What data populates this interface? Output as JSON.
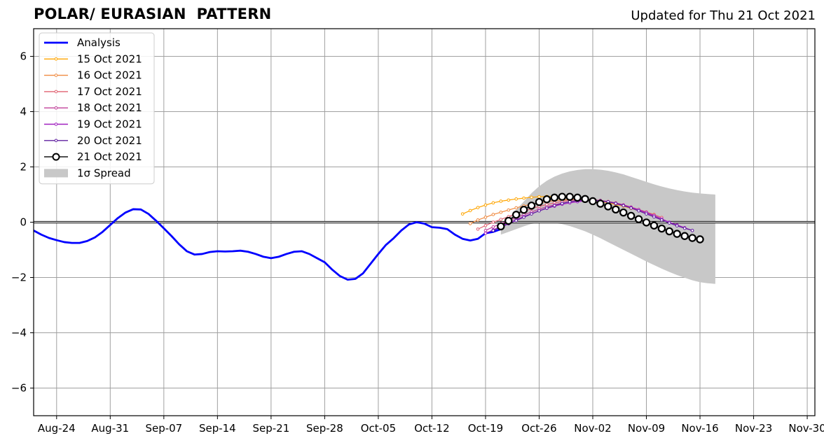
{
  "header": {
    "title": "POLAR/ EURASIAN  PATTERN",
    "updated": "Updated for Thu 21 Oct 2021"
  },
  "chart_data": {
    "type": "line",
    "title": "POLAR/ EURASIAN  PATTERN",
    "subtitle": "Updated for Thu 21 Oct 2021",
    "xlabel": "",
    "ylabel": "",
    "ylim": [
      -7,
      7
    ],
    "xlim": [
      "2021-08-21",
      "2021-12-01"
    ],
    "grid": true,
    "legend_position": "top-left",
    "y_ticks": [
      -6,
      -4,
      -2,
      0,
      2,
      4,
      6
    ],
    "y_tick_labels": [
      "−6",
      "−4",
      "−2",
      "0",
      "2",
      "4",
      "6"
    ],
    "x_ticks": [
      "2021-08-24",
      "2021-08-31",
      "2021-09-07",
      "2021-09-14",
      "2021-09-21",
      "2021-09-28",
      "2021-10-05",
      "2021-10-12",
      "2021-10-19",
      "2021-10-26",
      "2021-11-02",
      "2021-11-09",
      "2021-11-16",
      "2021-11-23",
      "2021-11-30"
    ],
    "x_tick_labels": [
      "Aug-24",
      "Aug-31",
      "Sep-07",
      "Sep-14",
      "Sep-21",
      "Sep-28",
      "Oct-05",
      "Oct-12",
      "Oct-19",
      "Oct-26",
      "Nov-02",
      "Nov-09",
      "Nov-16",
      "Nov-23",
      "Nov-30"
    ],
    "reference_line": 0,
    "analysis": {
      "name": "Analysis",
      "color": "#0000ff",
      "x": [
        "2021-08-21",
        "2021-08-22",
        "2021-08-23",
        "2021-08-24",
        "2021-08-25",
        "2021-08-26",
        "2021-08-27",
        "2021-08-28",
        "2021-08-29",
        "2021-08-30",
        "2021-08-31",
        "2021-09-01",
        "2021-09-02",
        "2021-09-03",
        "2021-09-04",
        "2021-09-05",
        "2021-09-06",
        "2021-09-07",
        "2021-09-08",
        "2021-09-09",
        "2021-09-10",
        "2021-09-11",
        "2021-09-12",
        "2021-09-13",
        "2021-09-14",
        "2021-09-15",
        "2021-09-16",
        "2021-09-17",
        "2021-09-18",
        "2021-09-19",
        "2021-09-20",
        "2021-09-21",
        "2021-09-22",
        "2021-09-23",
        "2021-09-24",
        "2021-09-25",
        "2021-09-26",
        "2021-09-27",
        "2021-09-28",
        "2021-09-29",
        "2021-09-30",
        "2021-10-01",
        "2021-10-02",
        "2021-10-03",
        "2021-10-04",
        "2021-10-05",
        "2021-10-06",
        "2021-10-07",
        "2021-10-08",
        "2021-10-09",
        "2021-10-10",
        "2021-10-11",
        "2021-10-12",
        "2021-10-13",
        "2021-10-14",
        "2021-10-15",
        "2021-10-16",
        "2021-10-17",
        "2021-10-18",
        "2021-10-19",
        "2021-10-20",
        "2021-10-21"
      ],
      "y": [
        -0.3,
        -0.45,
        -0.57,
        -0.65,
        -0.72,
        -0.75,
        -0.75,
        -0.68,
        -0.55,
        -0.35,
        -0.1,
        0.15,
        0.35,
        0.47,
        0.46,
        0.3,
        0.05,
        -0.22,
        -0.5,
        -0.8,
        -1.05,
        -1.17,
        -1.15,
        -1.08,
        -1.05,
        -1.06,
        -1.05,
        -1.03,
        -1.07,
        -1.15,
        -1.25,
        -1.3,
        -1.25,
        -1.15,
        -1.07,
        -1.05,
        -1.15,
        -1.3,
        -1.45,
        -1.72,
        -1.95,
        -2.08,
        -2.05,
        -1.85,
        -1.5,
        -1.15,
        -0.82,
        -0.58,
        -0.3,
        -0.08,
        0.0,
        -0.05,
        -0.18,
        -0.2,
        -0.25,
        -0.45,
        -0.6,
        -0.66,
        -0.6,
        -0.4,
        -0.35,
        -0.25
      ]
    },
    "forecasts": [
      {
        "name": "15 Oct 2021",
        "color": "#ffa500",
        "start": "2021-10-16",
        "y": [
          0.3,
          0.42,
          0.53,
          0.62,
          0.7,
          0.76,
          0.8,
          0.84,
          0.87,
          0.9,
          0.92,
          0.93,
          0.93,
          0.92,
          0.9,
          0.87,
          0.84,
          0.8,
          0.76,
          0.7,
          0.64,
          0.58,
          0.5,
          0.42,
          0.34
        ]
      },
      {
        "name": "16 Oct 2021",
        "color": "#f08a40",
        "start": "2021-10-17",
        "y": [
          -0.05,
          0.08,
          0.18,
          0.28,
          0.36,
          0.44,
          0.52,
          0.59,
          0.65,
          0.7,
          0.74,
          0.78,
          0.8,
          0.82,
          0.82,
          0.81,
          0.79,
          0.76,
          0.72,
          0.66,
          0.59,
          0.52,
          0.44,
          0.36,
          0.28
        ]
      },
      {
        "name": "17 Oct 2021",
        "color": "#e06070",
        "start": "2021-10-18",
        "y": [
          -0.25,
          -0.12,
          0.0,
          0.1,
          0.2,
          0.3,
          0.4,
          0.49,
          0.57,
          0.64,
          0.7,
          0.75,
          0.79,
          0.81,
          0.82,
          0.81,
          0.79,
          0.75,
          0.7,
          0.63,
          0.55,
          0.46,
          0.37,
          0.27,
          0.17
        ]
      },
      {
        "name": "18 Oct 2021",
        "color": "#c0409a",
        "start": "2021-10-19",
        "y": [
          -0.3,
          -0.17,
          -0.05,
          0.06,
          0.17,
          0.27,
          0.37,
          0.47,
          0.56,
          0.63,
          0.69,
          0.74,
          0.77,
          0.79,
          0.79,
          0.77,
          0.73,
          0.67,
          0.6,
          0.52,
          0.43,
          0.33,
          0.22,
          0.1,
          -0.02
        ]
      },
      {
        "name": "19 Oct 2021",
        "color": "#a020c0",
        "start": "2021-10-19",
        "y": [
          -0.4,
          -0.28,
          -0.15,
          -0.03,
          0.09,
          0.2,
          0.31,
          0.41,
          0.5,
          0.58,
          0.65,
          0.7,
          0.74,
          0.77,
          0.78,
          0.77,
          0.74,
          0.69,
          0.62,
          0.54,
          0.45,
          0.35,
          0.24,
          0.12,
          0.0,
          -0.1,
          -0.2,
          -0.3
        ]
      },
      {
        "name": "20 Oct 2021",
        "color": "#6020a0",
        "start": "2021-10-20",
        "y": [
          -0.3,
          -0.18,
          -0.06,
          0.06,
          0.18,
          0.3,
          0.41,
          0.51,
          0.6,
          0.68,
          0.74,
          0.78,
          0.8,
          0.8,
          0.78,
          0.74,
          0.68,
          0.6,
          0.51,
          0.41,
          0.3,
          0.19,
          0.08,
          -0.03,
          -0.13,
          -0.22,
          -0.3
        ]
      },
      {
        "name": "21 Oct 2021",
        "color": "#000000",
        "marker": "open-circle",
        "start": "2021-10-21",
        "y": [
          -0.15,
          0.05,
          0.27,
          0.45,
          0.6,
          0.73,
          0.83,
          0.89,
          0.92,
          0.92,
          0.89,
          0.84,
          0.76,
          0.67,
          0.57,
          0.46,
          0.35,
          0.23,
          0.11,
          -0.01,
          -0.12,
          -0.23,
          -0.33,
          -0.42,
          -0.5,
          -0.57,
          -0.62
        ]
      }
    ],
    "spread": {
      "name": "1σ Spread",
      "color": "#c8c8c8",
      "start": "2021-10-21",
      "upper": [
        -0.1,
        0.15,
        0.45,
        0.75,
        1.05,
        1.3,
        1.5,
        1.65,
        1.76,
        1.84,
        1.89,
        1.92,
        1.92,
        1.9,
        1.86,
        1.8,
        1.73,
        1.64,
        1.55,
        1.46,
        1.37,
        1.29,
        1.22,
        1.16,
        1.11,
        1.07,
        1.04,
        1.02,
        1.0
      ],
      "lower": [
        -0.45,
        -0.35,
        -0.25,
        -0.15,
        -0.06,
        0.0,
        0.0,
        -0.02,
        -0.07,
        -0.14,
        -0.23,
        -0.33,
        -0.45,
        -0.58,
        -0.72,
        -0.86,
        -1.0,
        -1.14,
        -1.28,
        -1.42,
        -1.55,
        -1.68,
        -1.8,
        -1.91,
        -2.01,
        -2.1,
        -2.17,
        -2.21,
        -2.23
      ]
    }
  }
}
